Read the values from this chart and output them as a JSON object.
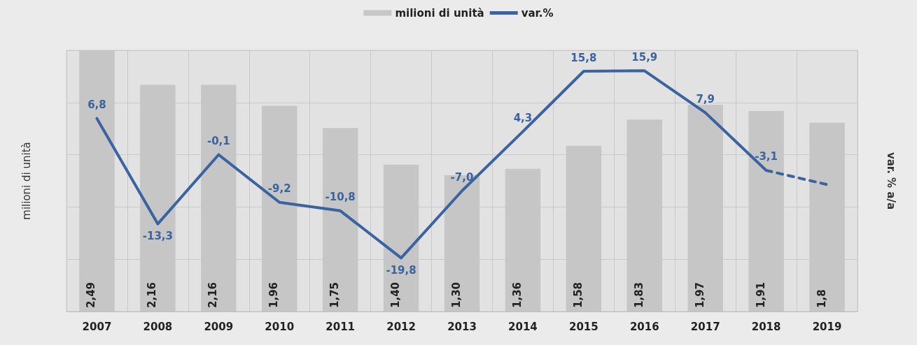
{
  "chart_data": {
    "type": "bar",
    "categories": [
      "2007",
      "2008",
      "2009",
      "2010",
      "2011",
      "2012",
      "2013",
      "2014",
      "2015",
      "2016",
      "2017",
      "2018",
      "2019"
    ],
    "series": [
      {
        "name": "milioni di unità",
        "color": "#c6c6c6",
        "values": [
          2.49,
          2.16,
          2.16,
          1.96,
          1.75,
          1.4,
          1.3,
          1.36,
          1.58,
          1.83,
          1.97,
          1.91,
          1.8
        ],
        "value_labels": [
          "2,49",
          "2,16",
          "2,16",
          "1,96",
          "1,75",
          "1,40",
          "1,30",
          "1,36",
          "1,58",
          "1,83",
          "1,97",
          "1,91",
          "1,8"
        ]
      },
      {
        "name": "var.%",
        "type": "line",
        "axis": "y2",
        "color": "#3a63a0",
        "line_style": "solid",
        "values": [
          6.8,
          -13.3,
          -0.1,
          -9.2,
          -10.8,
          -19.8,
          -7.0,
          4.3,
          15.8,
          15.9,
          7.9,
          -3.1,
          null
        ],
        "value_labels": [
          "6,8",
          "-13,3",
          "-0,1",
          "-9,2",
          "-10,8",
          "-19,8",
          "-7,0",
          "4,3",
          "15,8",
          "15,9",
          "7,9",
          "-3,1",
          null
        ]
      },
      {
        "type": "line",
        "axis": "y2",
        "color": "#3a63a0",
        "line_style": "dashed",
        "values": [
          null,
          null,
          null,
          null,
          null,
          null,
          null,
          null,
          null,
          null,
          null,
          -3.1,
          -5.8
        ]
      }
    ],
    "ylabel": "milioni di unità",
    "y2label": "var. % a/a",
    "ylim": [
      0,
      2.49
    ],
    "y2lim": [
      -30,
      19.8
    ],
    "grid": true,
    "legend": "top",
    "marker": "none",
    "tick_labels": "x"
  }
}
